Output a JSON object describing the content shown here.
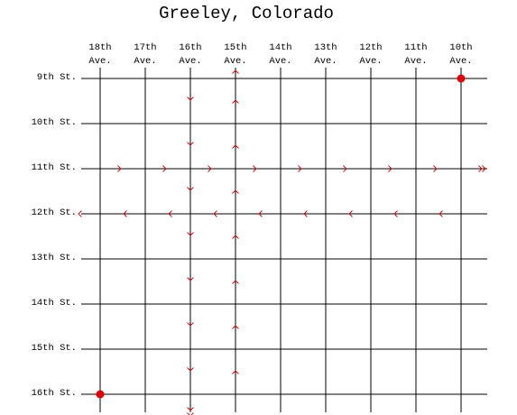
{
  "title": "Greeley, Colorado",
  "avenues": [
    [
      "18th",
      "Ave."
    ],
    [
      "17th",
      "Ave."
    ],
    [
      "16th",
      "Ave."
    ],
    [
      "15th",
      "Ave."
    ],
    [
      "14th",
      "Ave."
    ],
    [
      "13th",
      "Ave."
    ],
    [
      "12th",
      "Ave."
    ],
    [
      "11th",
      "Ave."
    ],
    [
      "10th",
      "Ave."
    ]
  ],
  "streets": [
    "9th St.",
    "10th St.",
    "11th St.",
    "12th St.",
    "13th St.",
    "14th St.",
    "15th St.",
    "16th St."
  ]
}
